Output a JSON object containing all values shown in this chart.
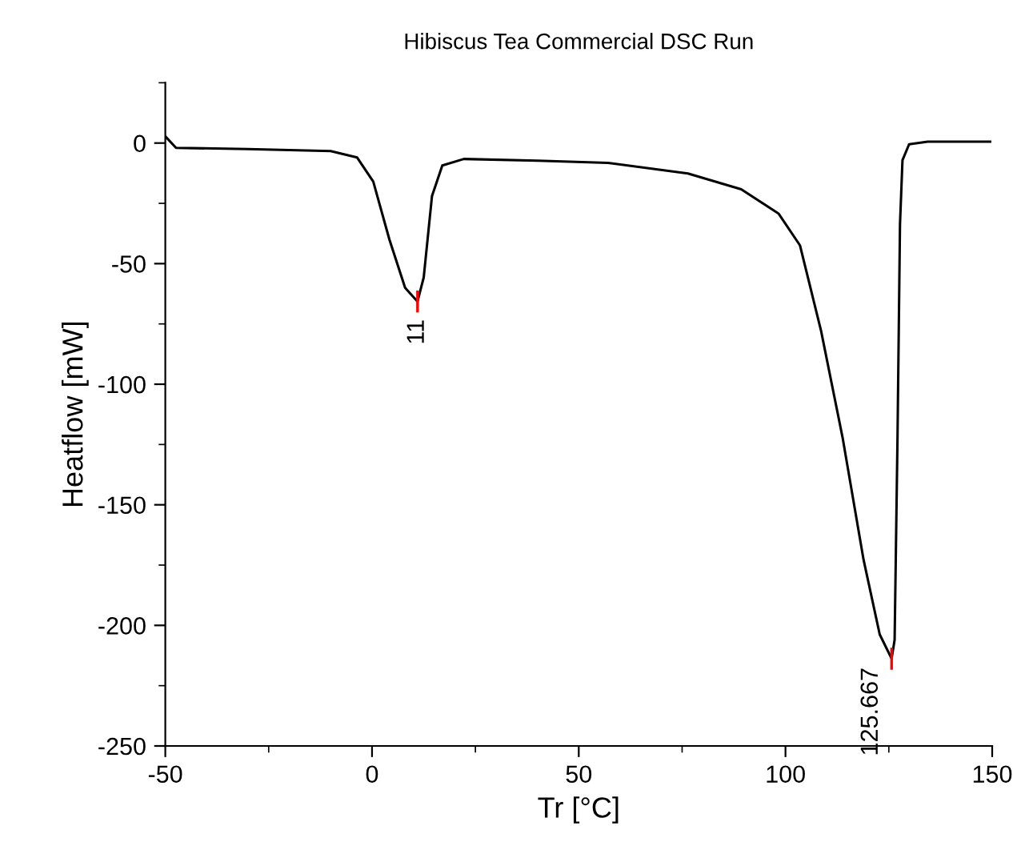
{
  "chart_data": {
    "type": "line",
    "title": "Hibiscus Tea Commercial DSC Run",
    "xlabel": "Tr [°C]",
    "ylabel": "Heatflow [mW]",
    "series": [
      {
        "color": "#000000",
        "x": [
          -50,
          -47.4,
          -30,
          -10,
          -3.6,
          0.3,
          4.2,
          8,
          11,
          12.5,
          14.5,
          17,
          22.2,
          40,
          57,
          76.4,
          89.3,
          98.3,
          103.5,
          108.6,
          113.8,
          118.9,
          122.8,
          125.667,
          126.4,
          127.1,
          127.7,
          128.3,
          129.9,
          134.4,
          149.5
        ],
        "values": [
          2.8,
          -2,
          -2.5,
          -3.3,
          -6,
          -16,
          -40,
          -60,
          -65.7,
          -55.7,
          -22,
          -9.3,
          -6.6,
          -7.3,
          -8.2,
          -12.6,
          -19.2,
          -29.2,
          -42.4,
          -77.8,
          -122,
          -172.9,
          -203.8,
          -213.8,
          -206,
          -122,
          -33.6,
          -7.1,
          -0.5,
          0.6,
          0.6
        ]
      }
    ],
    "annotations": [
      {
        "text": "11",
        "x": 11,
        "y": -65.7
      },
      {
        "text": "125.667",
        "x": 125.667,
        "y": -213.8
      }
    ],
    "xlim": [
      -50,
      150
    ],
    "xticks": [
      -50,
      0,
      50,
      100,
      150
    ],
    "ylim": [
      -250,
      25
    ],
    "yticks": [
      -250,
      -200,
      -150,
      -100,
      -50,
      0
    ],
    "grid": false,
    "legend": false,
    "marker": "none",
    "line_style": "solid"
  }
}
